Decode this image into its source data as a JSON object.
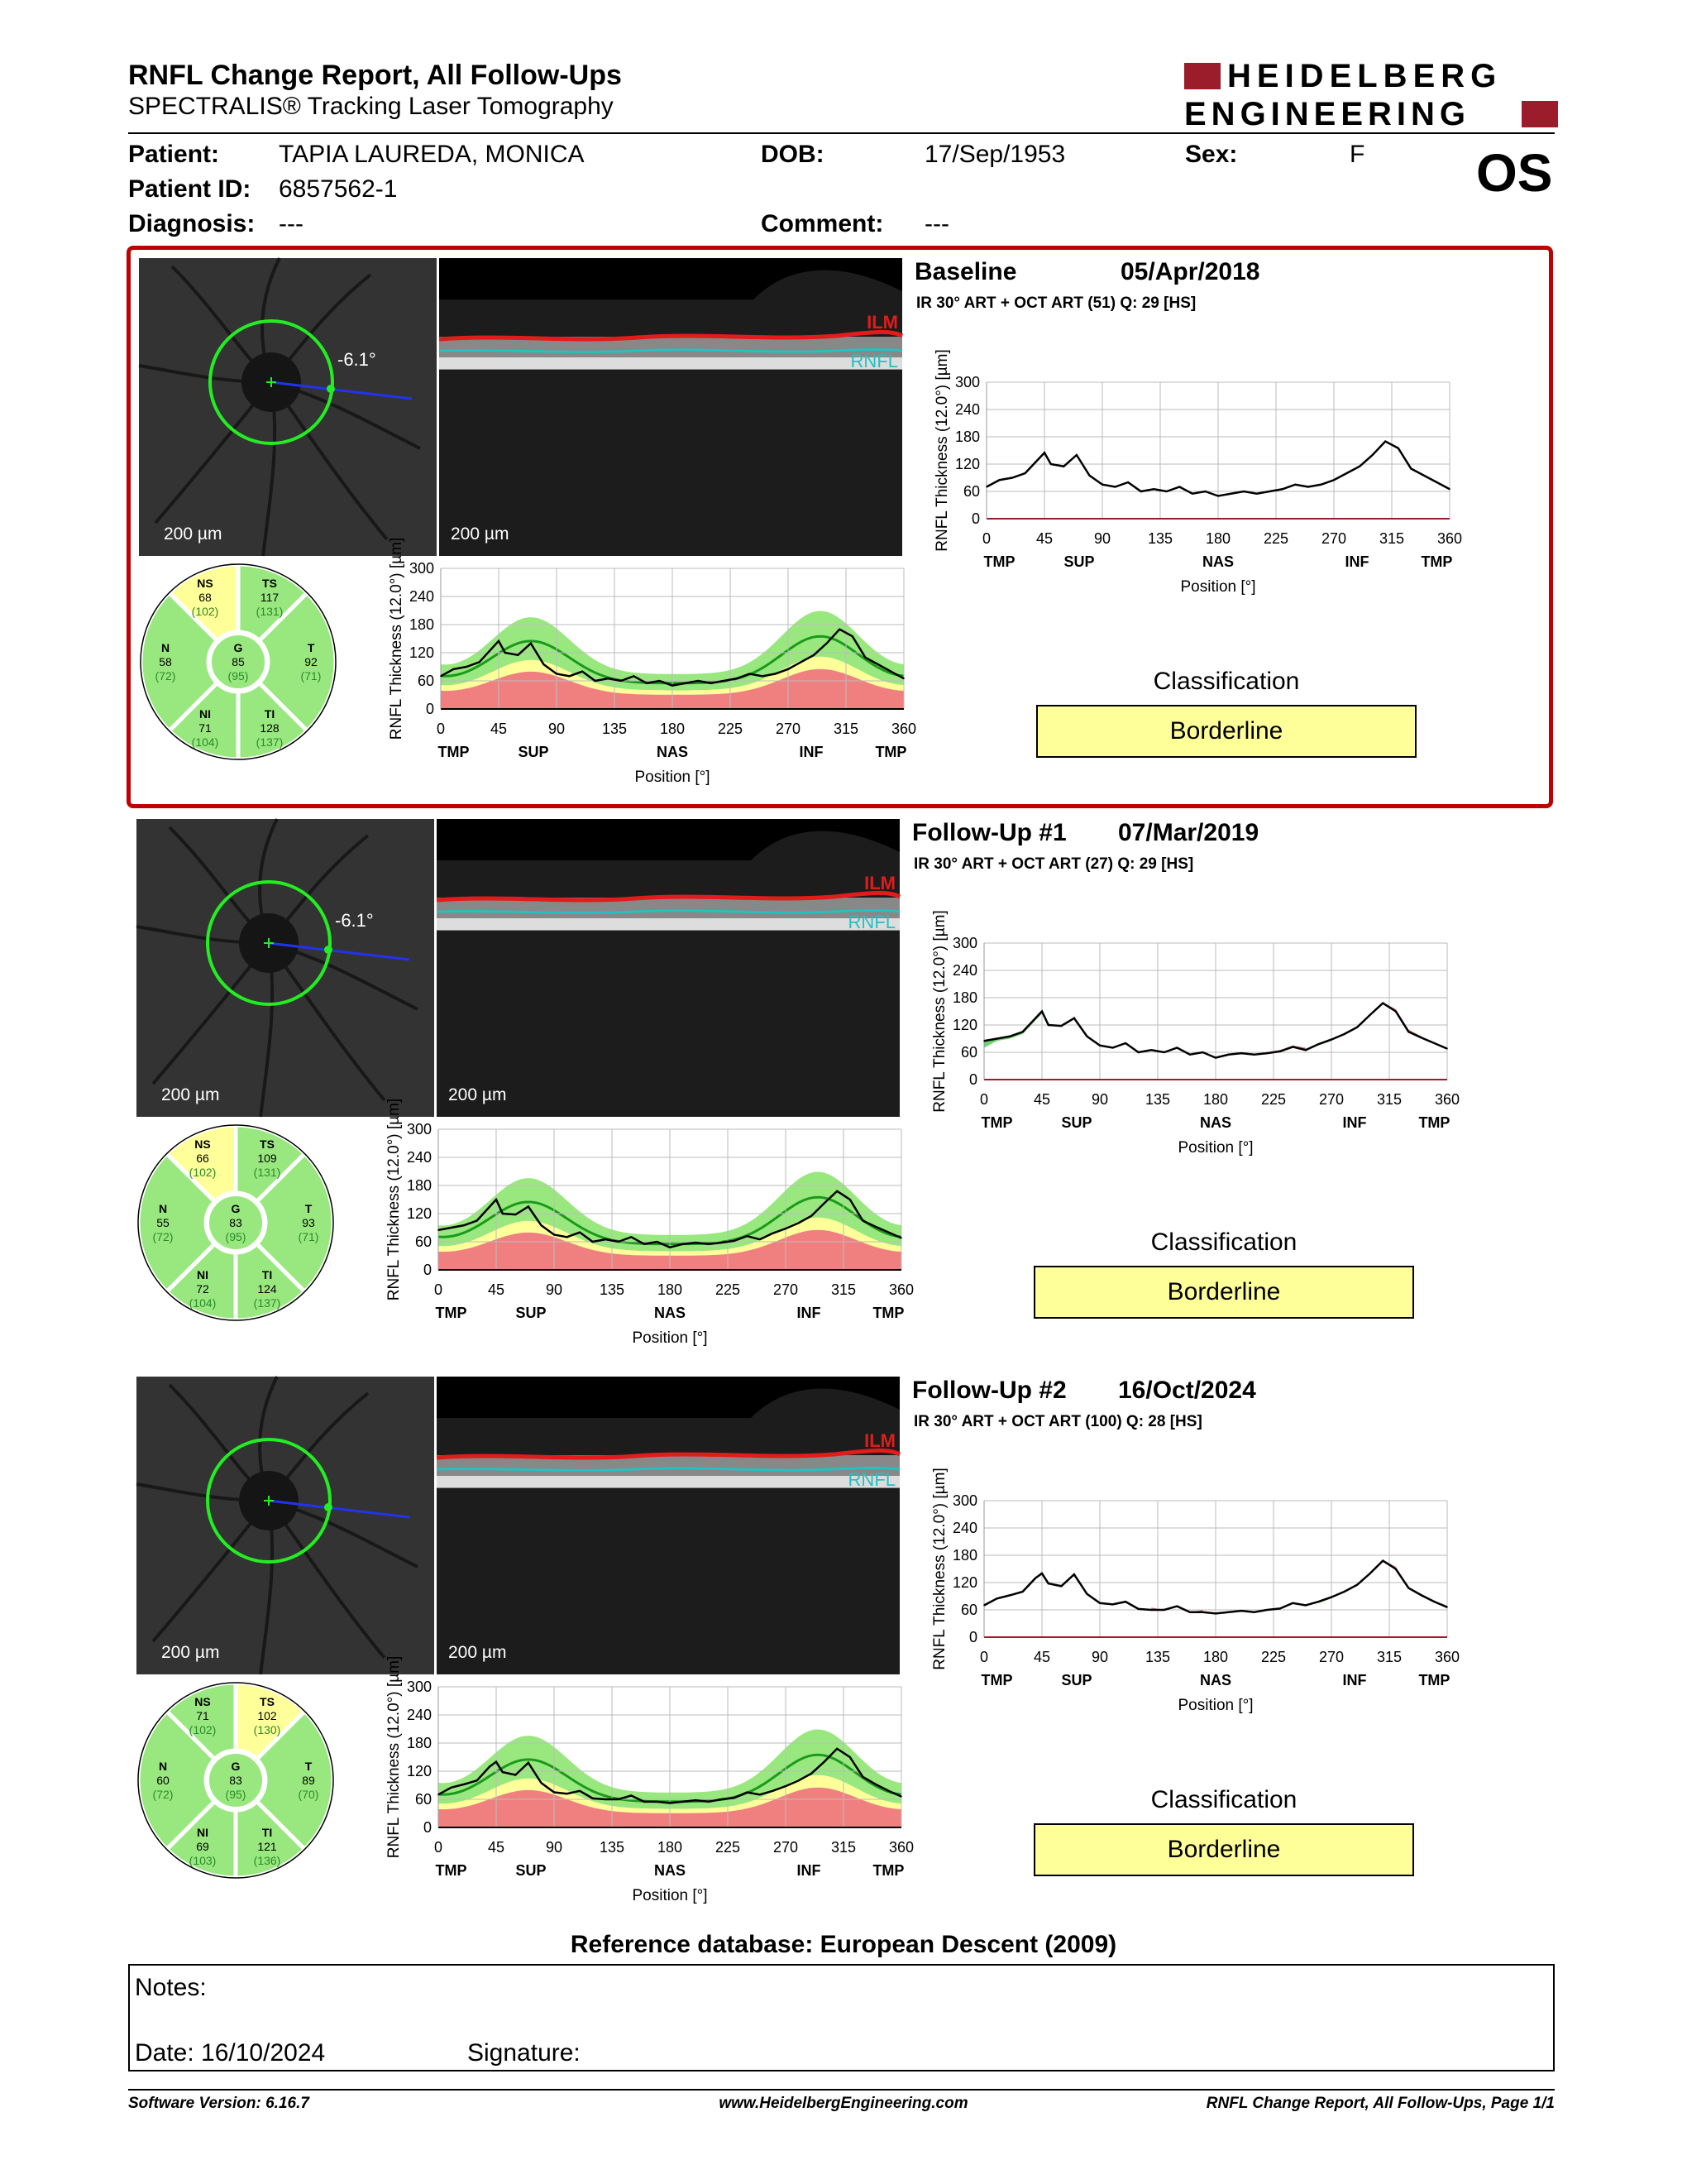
{
  "report": {
    "title": "RNFL Change Report, All Follow-Ups",
    "subtitle": "SPECTRALIS® Tracking Laser Tomography",
    "brand_line1": "HEIDELBERG",
    "brand_line2": "ENGINEERING",
    "brand_color": "#9b1c2a",
    "eye": "OS"
  },
  "patient": {
    "patient_label": "Patient:",
    "patient_name": "TAPIA LAUREDA, MONICA",
    "dob_label": "DOB:",
    "dob": "17/Sep/1953",
    "sex_label": "Sex:",
    "sex": "F",
    "id_label": "Patient ID:",
    "id": "6857562-1",
    "diagnosis_label": "Diagnosis:",
    "diagnosis": "---",
    "comment_label": "Comment:",
    "comment": "---"
  },
  "common": {
    "scale_fundus": "200 µm",
    "scale_bscan": "200 µm",
    "ilm": "ILM",
    "rnfl": "RNFL",
    "angle": "-6.1°",
    "classification_title": "Classification",
    "y_label": "RNFL Thickness (12.0°) [µm]",
    "x_label": "Position [°]",
    "x_ticks": [
      "0",
      "45",
      "90",
      "135",
      "180",
      "225",
      "270",
      "315",
      "360"
    ],
    "y_ticks": [
      "0",
      "60",
      "120",
      "180",
      "240",
      "300"
    ],
    "regions": [
      "TMP",
      "SUP",
      "NAS",
      "INF",
      "TMP"
    ],
    "colors": {
      "normal": "#99e87f",
      "borderline": "#ffff99",
      "outside": "#f08080",
      "highlight_border": "#c00000",
      "normal_line": "#1a9a1a"
    }
  },
  "visits": [
    {
      "label": "Baseline",
      "date": "05/Apr/2018",
      "scan": "IR 30° ART + OCT ART (51) Q: 29 [HS]",
      "classification": "Borderline",
      "show_angle": true,
      "sectors": {
        "NS": {
          "name": "NS",
          "value": "68",
          "ref": "(102)",
          "status": "borderline"
        },
        "TS": {
          "name": "TS",
          "value": "117",
          "ref": "(131)",
          "status": "normal"
        },
        "N": {
          "name": "N",
          "value": "58",
          "ref": "(72)",
          "status": "normal"
        },
        "G": {
          "name": "G",
          "value": "85",
          "ref": "(95)",
          "status": "normal"
        },
        "T": {
          "name": "T",
          "value": "92",
          "ref": "(71)",
          "status": "normal"
        },
        "NI": {
          "name": "NI",
          "value": "71",
          "ref": "(104)",
          "status": "normal"
        },
        "TI": {
          "name": "TI",
          "value": "128",
          "ref": "(137)",
          "status": "normal"
        }
      }
    },
    {
      "label": "Follow-Up #1",
      "date": "07/Mar/2019",
      "scan": "IR 30° ART + OCT ART (27) Q: 29 [HS]",
      "classification": "Borderline",
      "show_angle": true,
      "sectors": {
        "NS": {
          "name": "NS",
          "value": "66",
          "ref": "(102)",
          "status": "borderline"
        },
        "TS": {
          "name": "TS",
          "value": "109",
          "ref": "(131)",
          "status": "normal"
        },
        "N": {
          "name": "N",
          "value": "55",
          "ref": "(72)",
          "status": "normal"
        },
        "G": {
          "name": "G",
          "value": "83",
          "ref": "(95)",
          "status": "normal"
        },
        "T": {
          "name": "T",
          "value": "93",
          "ref": "(71)",
          "status": "normal"
        },
        "NI": {
          "name": "NI",
          "value": "72",
          "ref": "(104)",
          "status": "normal"
        },
        "TI": {
          "name": "TI",
          "value": "124",
          "ref": "(137)",
          "status": "normal"
        }
      }
    },
    {
      "label": "Follow-Up #2",
      "date": "16/Oct/2024",
      "scan": "IR 30° ART + OCT ART (100) Q: 28 [HS]",
      "classification": "Borderline",
      "show_angle": false,
      "sectors": {
        "NS": {
          "name": "NS",
          "value": "71",
          "ref": "(102)",
          "status": "normal"
        },
        "TS": {
          "name": "TS",
          "value": "102",
          "ref": "(130)",
          "status": "borderline"
        },
        "N": {
          "name": "N",
          "value": "60",
          "ref": "(72)",
          "status": "normal"
        },
        "G": {
          "name": "G",
          "value": "83",
          "ref": "(95)",
          "status": "normal"
        },
        "T": {
          "name": "T",
          "value": "89",
          "ref": "(70)",
          "status": "normal"
        },
        "NI": {
          "name": "NI",
          "value": "69",
          "ref": "(103)",
          "status": "normal"
        },
        "TI": {
          "name": "TI",
          "value": "121",
          "ref": "(136)",
          "status": "normal"
        }
      }
    }
  ],
  "chart_data": [
    {
      "type": "line",
      "title": "",
      "xlabel": "Position [°]",
      "ylabel": "RNFL Thickness (12.0°) [µm]",
      "xlim": [
        0,
        360
      ],
      "ylim": [
        0,
        300
      ],
      "x_tick_labels": [
        "0",
        "45",
        "90",
        "135",
        "180",
        "225",
        "270",
        "315",
        "360"
      ],
      "region_labels": [
        "TMP",
        "SUP",
        "NAS",
        "INF",
        "TMP"
      ],
      "x": [
        0,
        10,
        20,
        30,
        40,
        45,
        50,
        60,
        70,
        80,
        90,
        100,
        110,
        120,
        130,
        140,
        150,
        160,
        170,
        180,
        190,
        200,
        210,
        220,
        230,
        240,
        250,
        260,
        270,
        280,
        290,
        300,
        310,
        320,
        330,
        340,
        350,
        360
      ],
      "series": [
        {
          "name": "Baseline",
          "values": [
            70,
            85,
            90,
            100,
            130,
            145,
            120,
            115,
            140,
            95,
            75,
            70,
            80,
            60,
            65,
            60,
            70,
            55,
            60,
            50,
            55,
            60,
            55,
            60,
            65,
            75,
            70,
            75,
            85,
            100,
            115,
            140,
            170,
            155,
            110,
            95,
            80,
            65
          ]
        },
        {
          "name": "Follow-Up #1",
          "values": [
            85,
            90,
            95,
            105,
            135,
            150,
            120,
            118,
            135,
            95,
            75,
            70,
            80,
            60,
            65,
            60,
            70,
            55,
            60,
            48,
            55,
            58,
            55,
            58,
            62,
            72,
            65,
            78,
            88,
            100,
            115,
            142,
            168,
            150,
            105,
            92,
            80,
            68
          ]
        },
        {
          "name": "Follow-Up #2",
          "values": [
            70,
            85,
            92,
            100,
            130,
            140,
            118,
            112,
            138,
            95,
            75,
            72,
            78,
            62,
            60,
            60,
            68,
            55,
            55,
            52,
            55,
            58,
            55,
            60,
            63,
            75,
            70,
            78,
            88,
            100,
            115,
            140,
            168,
            150,
            108,
            92,
            78,
            66
          ]
        }
      ]
    }
  ],
  "footer": {
    "reference": "Reference database: European Descent (2009)",
    "notes_label": "Notes:",
    "date_label": "Date: 16/10/2024",
    "signature_label": "Signature:",
    "software": "Software Version: 6.16.7",
    "website": "www.HeidelbergEngineering.com",
    "page": "RNFL Change Report, All Follow-Ups, Page 1/1"
  }
}
